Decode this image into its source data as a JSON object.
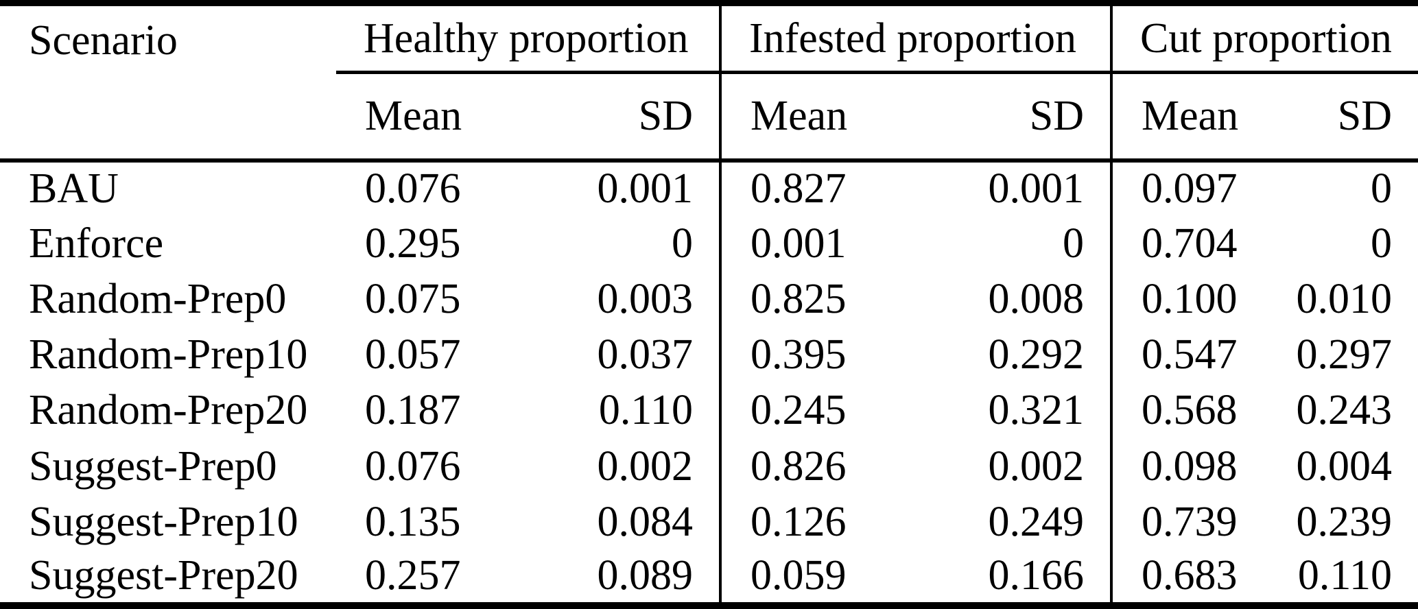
{
  "colors": {
    "background": "#ffffff",
    "text": "#000000",
    "rule": "#000000"
  },
  "table": {
    "scenario_header": "Scenario",
    "groups": [
      {
        "label": "Healthy proportion",
        "mean_label": "Mean",
        "sd_label": "SD"
      },
      {
        "label": "Infested proportion",
        "mean_label": "Mean",
        "sd_label": "SD"
      },
      {
        "label": "Cut proportion",
        "mean_label": "Mean",
        "sd_label": "SD"
      }
    ],
    "rows": [
      {
        "scenario": "BAU",
        "healthy_mean": "0.076",
        "healthy_sd": "0.001",
        "infested_mean": "0.827",
        "infested_sd": "0.001",
        "cut_mean": "0.097",
        "cut_sd": "0"
      },
      {
        "scenario": "Enforce",
        "healthy_mean": "0.295",
        "healthy_sd": "0",
        "infested_mean": "0.001",
        "infested_sd": "0",
        "cut_mean": "0.704",
        "cut_sd": "0"
      },
      {
        "scenario": "Random-Prep0",
        "healthy_mean": "0.075",
        "healthy_sd": "0.003",
        "infested_mean": "0.825",
        "infested_sd": "0.008",
        "cut_mean": "0.100",
        "cut_sd": "0.010"
      },
      {
        "scenario": "Random-Prep10",
        "healthy_mean": "0.057",
        "healthy_sd": "0.037",
        "infested_mean": "0.395",
        "infested_sd": "0.292",
        "cut_mean": "0.547",
        "cut_sd": "0.297"
      },
      {
        "scenario": "Random-Prep20",
        "healthy_mean": "0.187",
        "healthy_sd": "0.110",
        "infested_mean": "0.245",
        "infested_sd": "0.321",
        "cut_mean": "0.568",
        "cut_sd": "0.243"
      },
      {
        "scenario": "Suggest-Prep0",
        "healthy_mean": "0.076",
        "healthy_sd": "0.002",
        "infested_mean": "0.826",
        "infested_sd": "0.002",
        "cut_mean": "0.098",
        "cut_sd": "0.004"
      },
      {
        "scenario": "Suggest-Prep10",
        "healthy_mean": "0.135",
        "healthy_sd": "0.084",
        "infested_mean": "0.126",
        "infested_sd": "0.249",
        "cut_mean": "0.739",
        "cut_sd": "0.239"
      },
      {
        "scenario": "Suggest-Prep20",
        "healthy_mean": "0.257",
        "healthy_sd": "0.089",
        "infested_mean": "0.059",
        "infested_sd": "0.166",
        "cut_mean": "0.683",
        "cut_sd": "0.110"
      }
    ]
  }
}
